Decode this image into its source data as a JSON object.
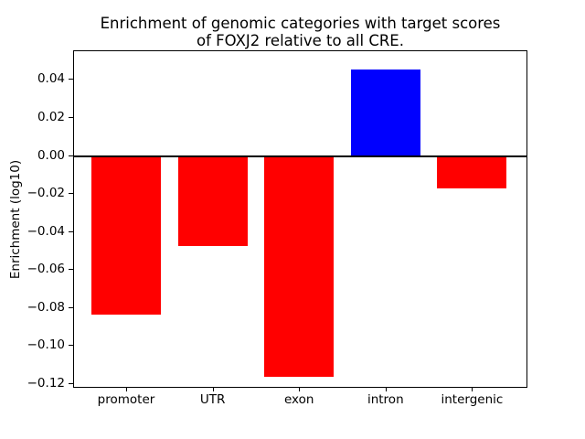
{
  "figure": {
    "background_color": "#ffffff",
    "axis_color": "#000000"
  },
  "chart_data": {
    "type": "bar",
    "title": "Enrichment of genomic categories with target scores\nof FOXJ2 relative to all CRE.",
    "ylabel": "Enrichment (log10)",
    "xlabel": "",
    "categories": [
      "promoter",
      "UTR",
      "exon",
      "intron",
      "intergenic"
    ],
    "values": [
      -0.083,
      -0.047,
      -0.116,
      0.046,
      -0.017
    ],
    "bar_colors": [
      "#ff0000",
      "#ff0000",
      "#ff0000",
      "#0000ff",
      "#ff0000"
    ],
    "positive_color": "#0000ff",
    "negative_color": "#ff0000",
    "yticks": [
      0.04,
      0.02,
      0.0,
      -0.02,
      -0.04,
      -0.06,
      -0.08,
      -0.1,
      -0.12
    ],
    "ytick_labels": [
      "0.04",
      "0.02",
      "0.00",
      "−0.02",
      "−0.04",
      "−0.06",
      "−0.08",
      "−0.10",
      "−0.12"
    ],
    "ylim": [
      -0.1222,
      0.0554
    ],
    "zero_line": true,
    "grid": false,
    "legend_position": "none"
  }
}
